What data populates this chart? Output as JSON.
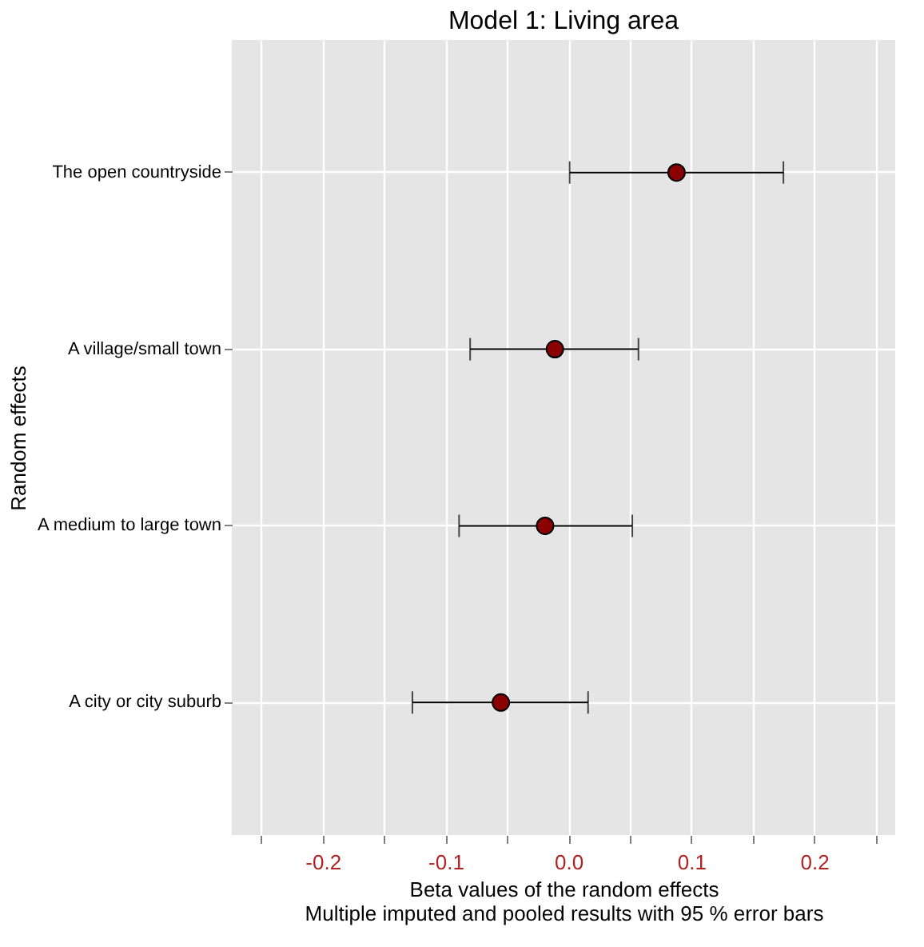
{
  "chart_data": {
    "type": "scatter",
    "orientation": "horizontal",
    "title": "Model 1: Living area",
    "xlabel": "Beta values of the random effects\nMultiple imputed and pooled results with 95 % error bars",
    "ylabel": "Random effects",
    "categories": [
      "The open countryside",
      "A village/small town",
      "A medium to large town",
      "A city or city suburb"
    ],
    "values": [
      0.088,
      -0.011,
      -0.019,
      -0.055
    ],
    "errors": [
      [
        0.001,
        0.175
      ],
      [
        -0.08,
        0.057
      ],
      [
        -0.089,
        0.052
      ],
      [
        -0.127,
        0.016
      ]
    ],
    "colors": [
      "#8b0000",
      "#8b0000",
      "#8b0000",
      "#8b0000"
    ],
    "xlim": [
      -0.274,
      0.266
    ],
    "xticks": [
      {
        "value": -0.25,
        "label": null
      },
      -0.2,
      {
        "value": -0.15,
        "label": null
      },
      -0.1,
      {
        "value": -0.05,
        "label": null
      },
      {
        "value": 0.0,
        "label": "0.0"
      },
      {
        "value": 0.05,
        "label": null
      },
      0.1,
      {
        "value": 0.15,
        "label": null
      },
      0.2,
      {
        "value": 0.25,
        "label": null
      }
    ],
    "grid": true,
    "marker": "circle",
    "legend": false
  }
}
